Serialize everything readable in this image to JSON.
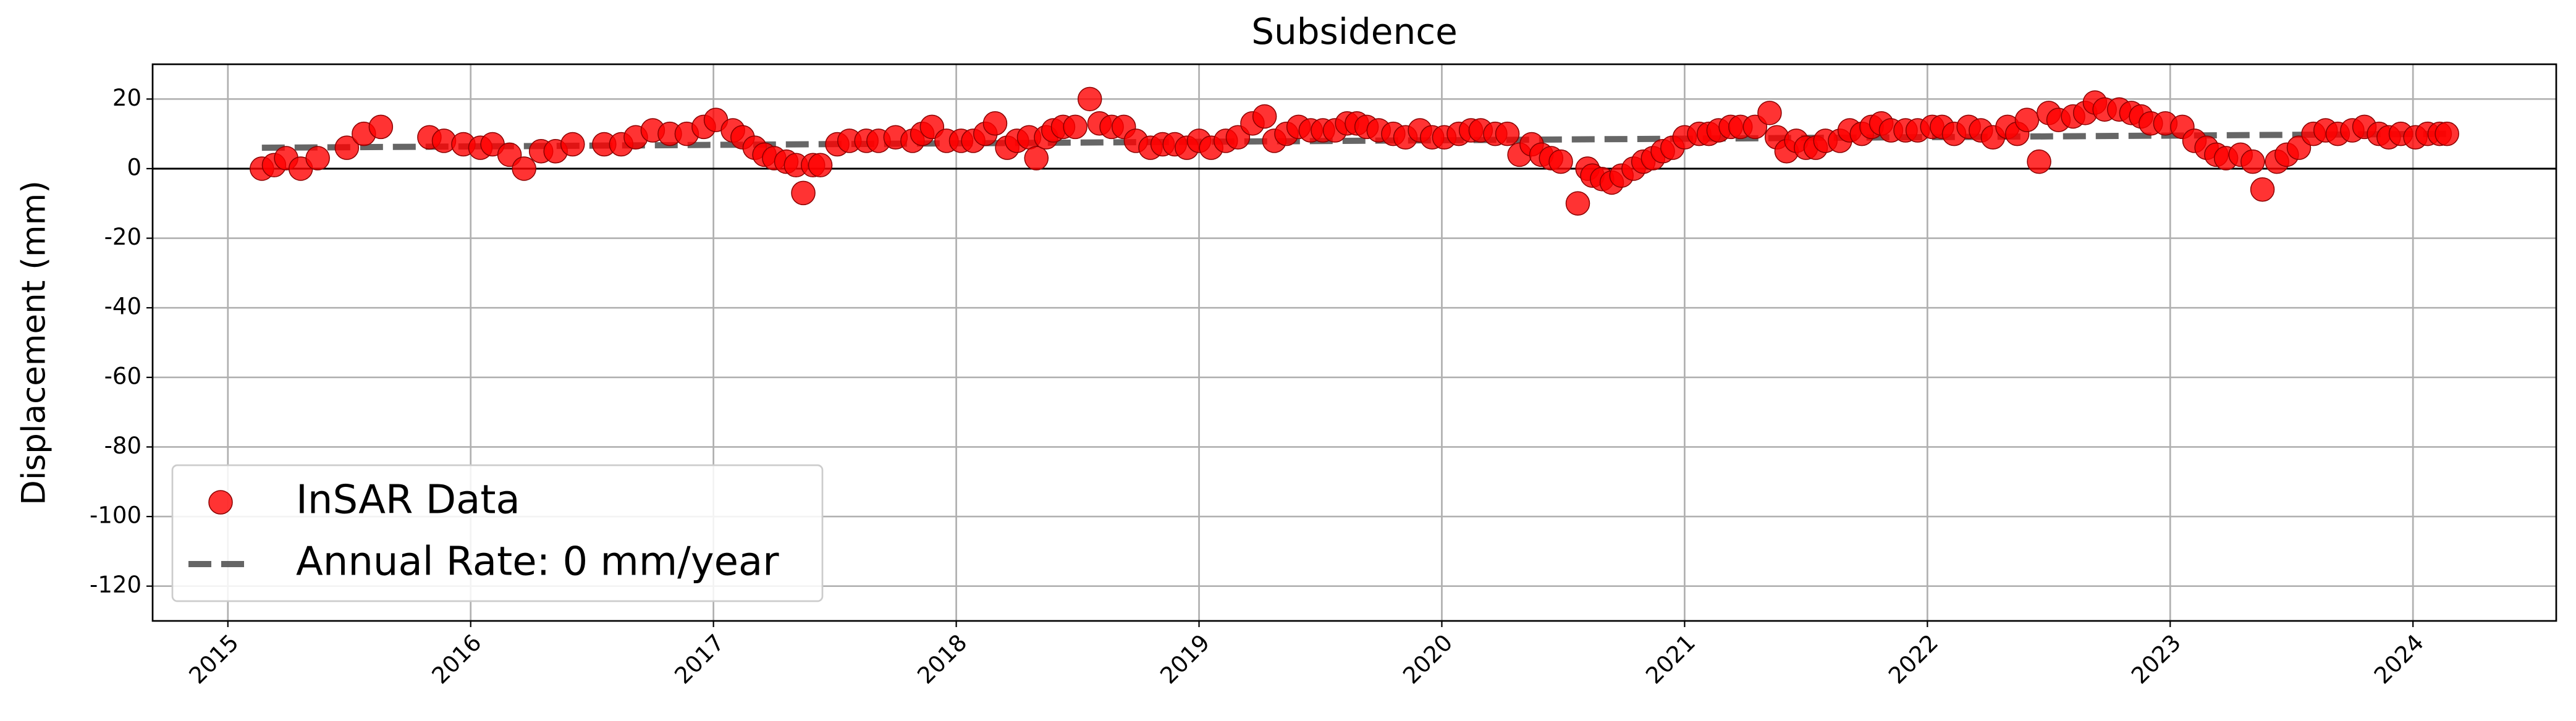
{
  "chart_data": {
    "type": "scatter",
    "title": "Subsidence",
    "y_label": "Displacement (mm)",
    "xlim": [
      2014.69,
      2024.59
    ],
    "xticks": [
      2015,
      2016,
      2017,
      2018,
      2019,
      2020,
      2021,
      2022,
      2023,
      2024
    ],
    "ylim": [
      -130,
      30
    ],
    "yticks": [
      -120,
      -100,
      -80,
      -60,
      -40,
      -20,
      0,
      20
    ],
    "grid": true,
    "hline": 0,
    "legend": "lower left",
    "series": [
      {
        "name": "InSAR Data",
        "color": "#ff0000",
        "marker": "circle",
        "x": [
          2015.14,
          2015.19,
          2015.24,
          2015.3,
          2015.37,
          2015.49,
          2015.56,
          2015.63,
          2015.83,
          2015.89,
          2015.97,
          2016.04,
          2016.09,
          2016.16,
          2016.22,
          2016.29,
          2016.35,
          2016.42,
          2016.55,
          2016.62,
          2016.68,
          2016.75,
          2016.82,
          2016.89,
          2016.96,
          2017.01,
          2017.08,
          2017.12,
          2017.17,
          2017.21,
          2017.25,
          2017.3,
          2017.34,
          2017.37,
          2017.41,
          2017.44,
          2017.51,
          2017.56,
          2017.63,
          2017.68,
          2017.75,
          2017.82,
          2017.86,
          2017.9,
          2017.96,
          2018.02,
          2018.07,
          2018.12,
          2018.16,
          2018.21,
          2018.25,
          2018.3,
          2018.33,
          2018.37,
          2018.4,
          2018.44,
          2018.49,
          2018.55,
          2018.59,
          2018.64,
          2018.69,
          2018.74,
          2018.8,
          2018.85,
          2018.9,
          2018.95,
          2019.0,
          2019.05,
          2019.11,
          2019.16,
          2019.22,
          2019.27,
          2019.31,
          2019.36,
          2019.41,
          2019.46,
          2019.51,
          2019.56,
          2019.61,
          2019.65,
          2019.69,
          2019.74,
          2019.8,
          2019.85,
          2019.91,
          2019.96,
          2020.01,
          2020.07,
          2020.12,
          2020.16,
          2020.22,
          2020.27,
          2020.32,
          2020.37,
          2020.41,
          2020.45,
          2020.49,
          2020.56,
          2020.6,
          2020.62,
          2020.66,
          2020.7,
          2020.74,
          2020.79,
          2020.83,
          2020.87,
          2020.91,
          2020.95,
          2021.0,
          2021.06,
          2021.1,
          2021.14,
          2021.19,
          2021.23,
          2021.29,
          2021.35,
          2021.38,
          2021.42,
          2021.46,
          2021.5,
          2021.54,
          2021.58,
          2021.64,
          2021.68,
          2021.73,
          2021.77,
          2021.81,
          2021.85,
          2021.91,
          2021.96,
          2022.02,
          2022.06,
          2022.11,
          2022.17,
          2022.22,
          2022.27,
          2022.33,
          2022.37,
          2022.41,
          2022.46,
          2022.5,
          2022.54,
          2022.6,
          2022.65,
          2022.69,
          2022.73,
          2022.79,
          2022.84,
          2022.88,
          2022.92,
          2022.98,
          2023.05,
          2023.1,
          2023.15,
          2023.19,
          2023.23,
          2023.29,
          2023.34,
          2023.38,
          2023.44,
          2023.48,
          2023.53,
          2023.59,
          2023.64,
          2023.69,
          2023.75,
          2023.8,
          2023.86,
          2023.9,
          2023.95,
          2024.01,
          2024.06,
          2024.11,
          2024.14
        ],
        "values": [
          0,
          1,
          3,
          0,
          3,
          6,
          10,
          12,
          9,
          8,
          7,
          6,
          7,
          4,
          0,
          5,
          5,
          7,
          7,
          7,
          9,
          11,
          10,
          10,
          12,
          14,
          11,
          9,
          6,
          4,
          3,
          2,
          1,
          -7,
          1,
          1,
          7,
          8,
          8,
          8,
          9,
          8,
          10,
          12,
          8,
          8,
          8,
          10,
          13,
          6,
          8,
          9,
          3,
          9,
          11,
          12,
          12,
          20,
          13,
          12,
          12,
          8,
          6,
          7,
          7,
          6,
          8,
          6,
          8,
          9,
          13,
          15,
          8,
          10,
          12,
          11,
          11,
          11,
          13,
          13,
          12,
          11,
          10,
          9,
          11,
          9,
          9,
          10,
          11,
          11,
          10,
          10,
          4,
          7,
          4,
          3,
          2,
          -10,
          0,
          -2,
          -3,
          -4,
          -2,
          0,
          2,
          3,
          5,
          6,
          9,
          10,
          10,
          11,
          12,
          12,
          12,
          16,
          9,
          5,
          8,
          6,
          6,
          8,
          8,
          11,
          10,
          12,
          13,
          11,
          11,
          11,
          12,
          12,
          10,
          12,
          11,
          9,
          12,
          10,
          14,
          2,
          16,
          14,
          15,
          16,
          19,
          17,
          17,
          16,
          15,
          13,
          13,
          12,
          8,
          6,
          4,
          3,
          4,
          2,
          -6,
          2,
          4,
          6,
          10,
          11,
          10,
          11,
          12,
          10,
          9,
          10,
          9,
          10,
          10,
          10
        ]
      },
      {
        "name": "Annual Rate: 0 mm/year",
        "color": "#555555",
        "linestyle": "dashed",
        "x": [
          2015.14,
          2024.14
        ],
        "values": [
          6,
          10
        ]
      }
    ]
  }
}
